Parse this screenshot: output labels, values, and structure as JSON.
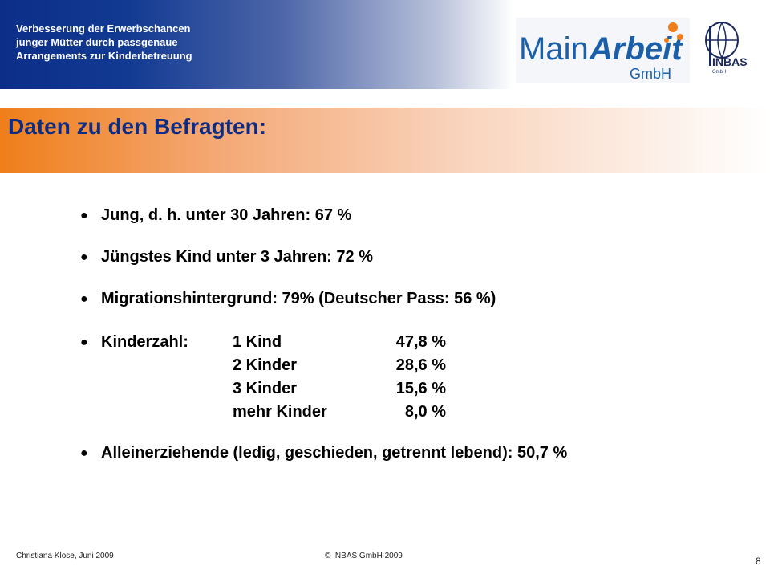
{
  "header": {
    "project_title_lines": [
      "Verbesserung der Erwerbschancen",
      "junger Mütter durch passgenaue",
      "Arrangements zur Kinderbetreuung"
    ],
    "logo_main": {
      "word1": "Main",
      "word2": "Arbeit",
      "suffix": "GmbH"
    },
    "logo_inbas": {
      "text": "INBAS",
      "sub": "GmbH"
    }
  },
  "title": "Daten zu den Befragten:",
  "bullets": [
    "Jung, d. h. unter 30 Jahren: 67 %",
    "Jüngstes Kind unter 3 Jahren: 72 %",
    "Migrationshintergrund: 79% (Deutscher Pass: 56 %)"
  ],
  "kinderzahl": {
    "label": "Kinderzahl:",
    "rows": [
      {
        "label": "1 Kind",
        "value": "47,8 %"
      },
      {
        "label": "2 Kinder",
        "value": "28,6 %"
      },
      {
        "label": "3 Kinder",
        "value": "15,6 %"
      },
      {
        "label": "mehr Kinder",
        "value": "8,0 %"
      }
    ]
  },
  "alleinerziehende": "Alleinerziehende (ledig, geschieden, getrennt lebend): 50,7 %",
  "bullet_symbol": "●",
  "footer": {
    "author": "Christiana Klose, Juni 2009",
    "copyright": "© INBAS GmbH 2009",
    "page_number": "8"
  },
  "colors": {
    "header_blue": "#0c2e88",
    "title_orange": "#ef7e1a",
    "title_text": "#0d2c84",
    "logo_blue": "#1b5fa8",
    "logo_dark": "#1a2a5e"
  }
}
